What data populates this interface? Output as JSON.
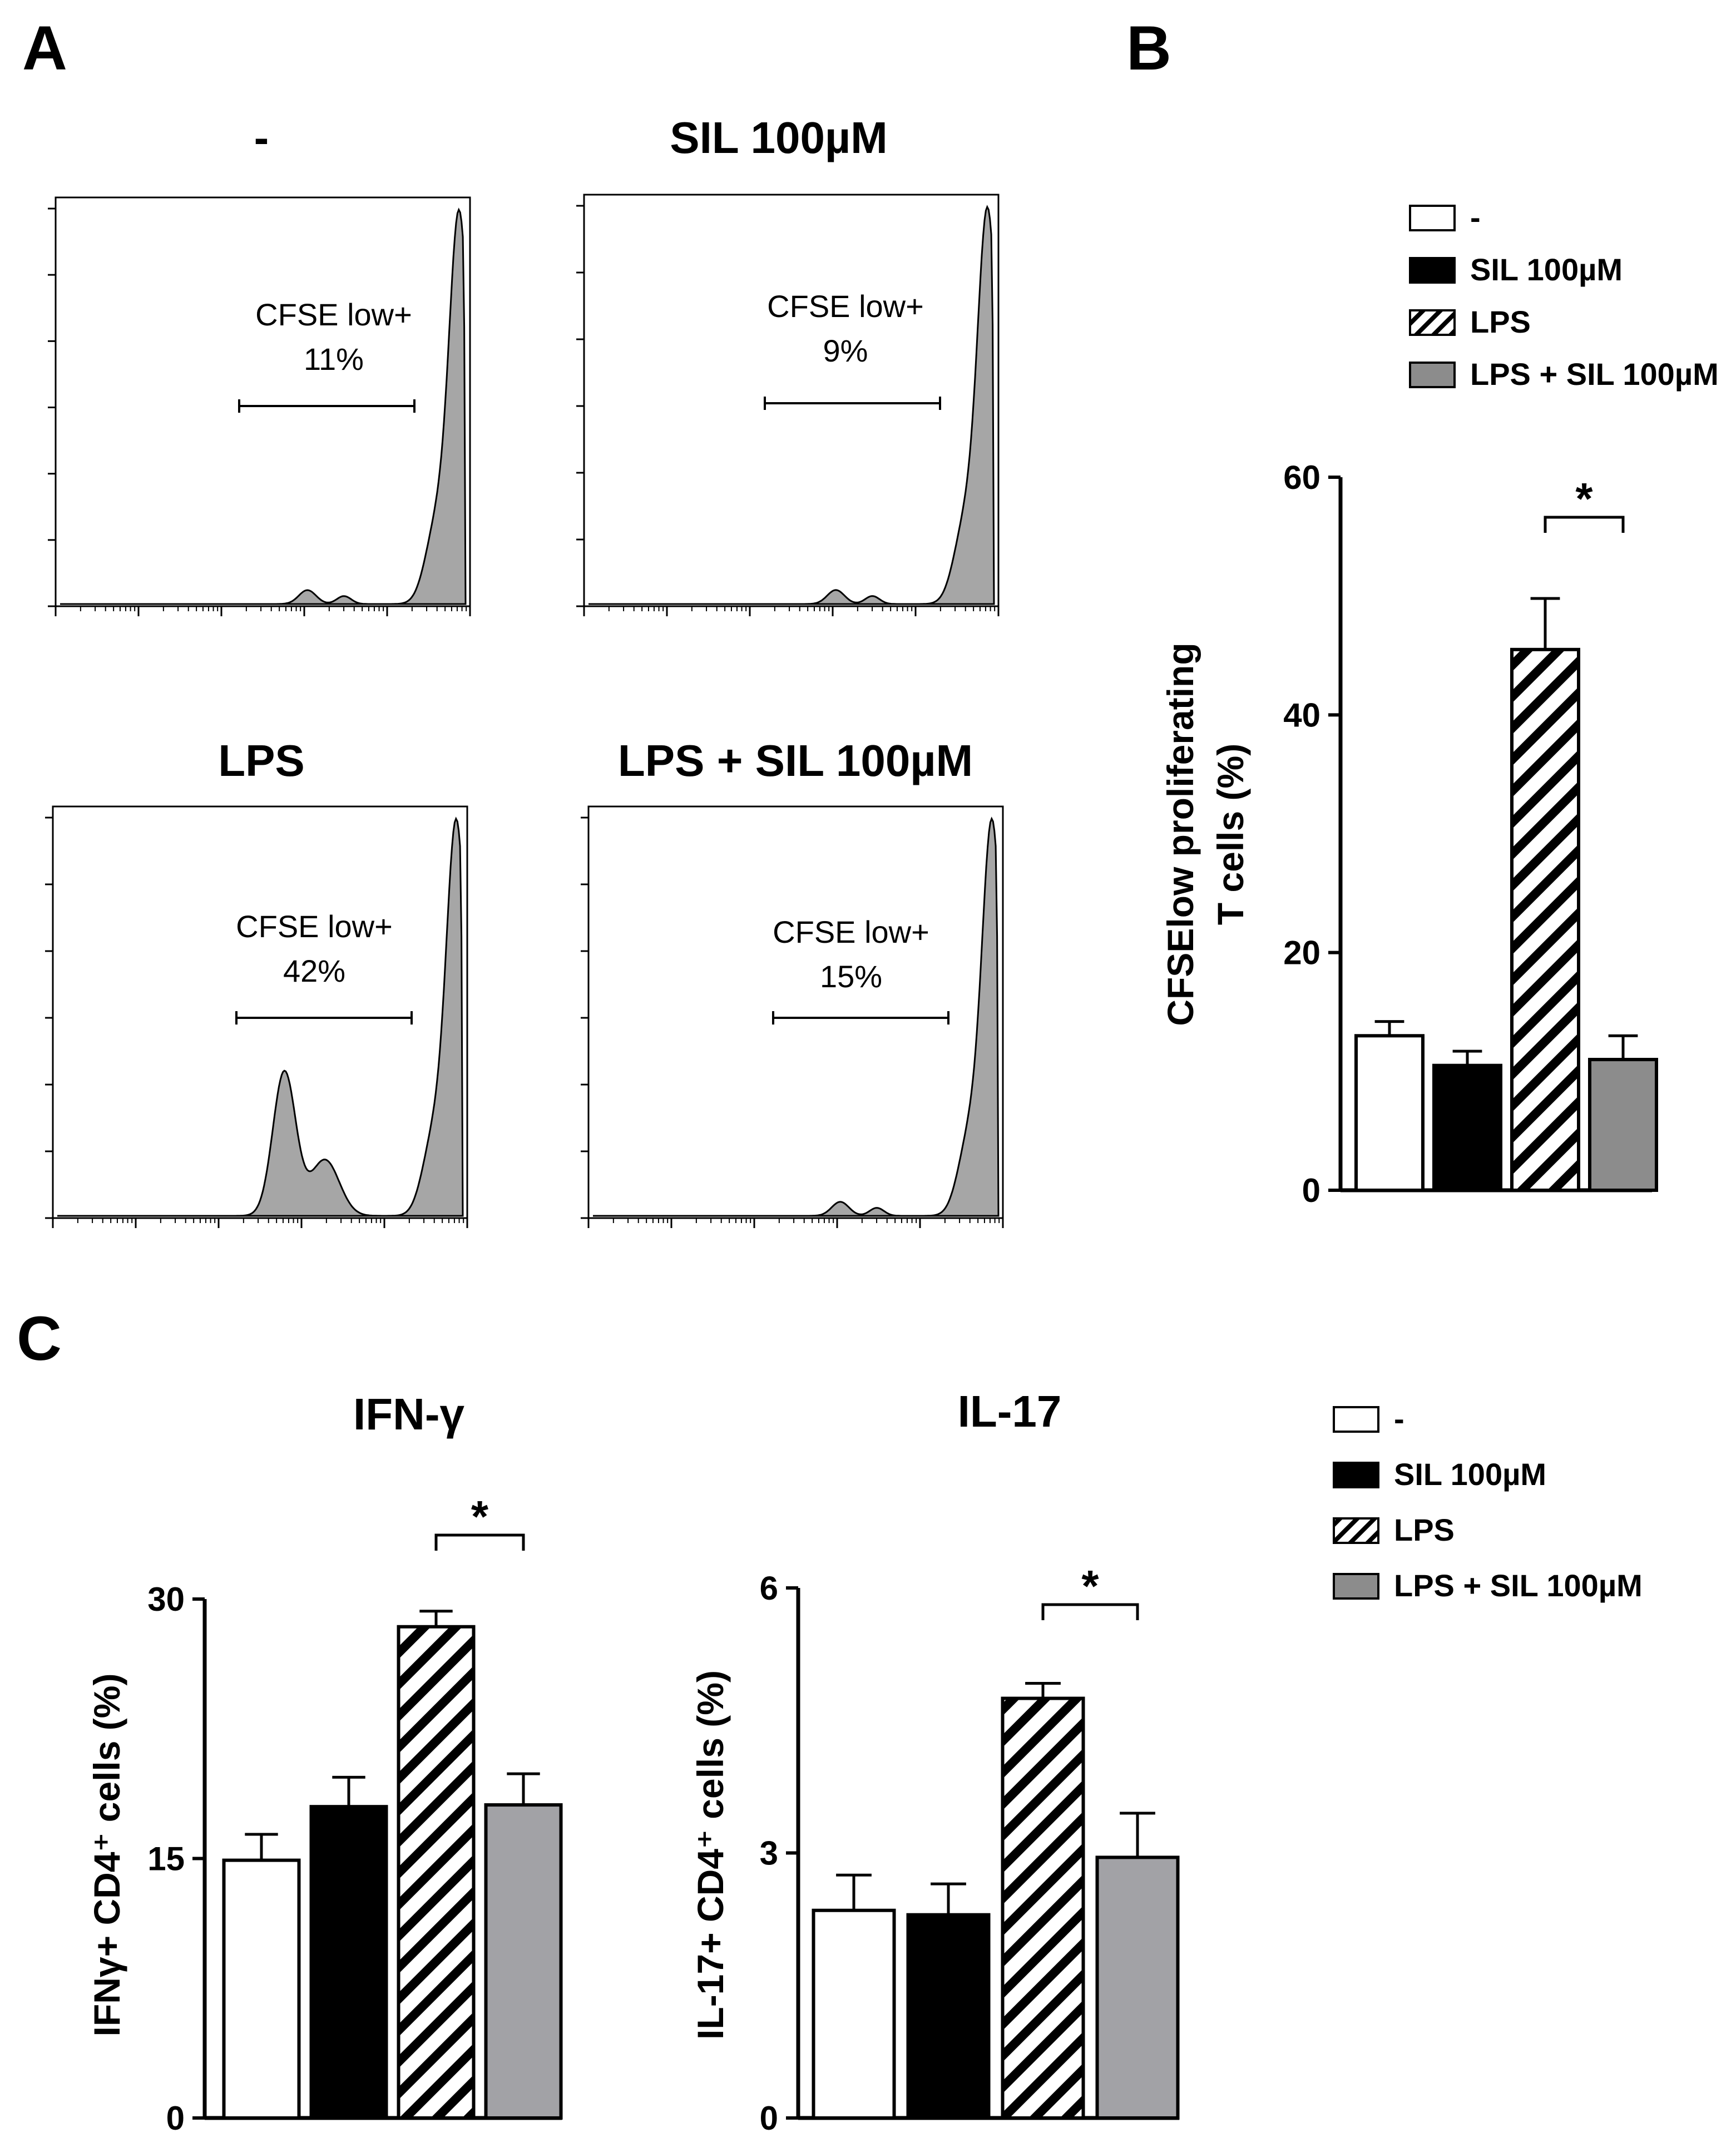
{
  "panel_letters": {
    "a": "A",
    "b": "B",
    "c": "C"
  },
  "legend": {
    "entries": [
      {
        "label": "-",
        "fill": "white"
      },
      {
        "label": "SIL 100µM",
        "fill": "black"
      },
      {
        "label": "LPS",
        "fill": "hatch"
      },
      {
        "label": "LPS + SIL 100µM",
        "fill": "gray"
      }
    ]
  },
  "colors": {
    "black": "#000000",
    "white": "#ffffff",
    "gray_bar": "#8c8c8c",
    "gray_bar_c": "#a2a2a6",
    "hist_fill": "#a6a6a6"
  },
  "chart_data": [
    {
      "id": "A",
      "type": "histogram",
      "gate_label": "CFSE low+",
      "panels": [
        {
          "title": "-",
          "percent_text": "11%",
          "percent": 11
        },
        {
          "title": "SIL 100µM",
          "percent_text": "9%",
          "percent": 9
        },
        {
          "title": "LPS",
          "percent_text": "42%",
          "percent": 42
        },
        {
          "title": "LPS + SIL 100µM",
          "percent_text": "15%",
          "percent": 15
        }
      ]
    },
    {
      "id": "B",
      "type": "bar",
      "title": "",
      "ylabel_lines": [
        "CFSElow proliferating",
        "T cells (%)"
      ],
      "ylim": [
        0,
        60
      ],
      "yticks": [
        0,
        20,
        40,
        60
      ],
      "categories": [
        "-",
        "SIL 100µM",
        "LPS",
        "LPS + SIL 100µM"
      ],
      "fills": [
        "white",
        "black",
        "hatch",
        "gray"
      ],
      "values": [
        13,
        10.5,
        45.5,
        11
      ],
      "errors": [
        1.2,
        1.2,
        4.3,
        2
      ],
      "significance": {
        "from": 2,
        "to": 3,
        "label": "*"
      }
    },
    {
      "id": "C1",
      "type": "bar",
      "title": "IFN-γ",
      "ylabel": "IFNγ+ CD4⁺ cells (%)",
      "ylim": [
        0,
        30
      ],
      "yticks": [
        0,
        15,
        30
      ],
      "categories": [
        "-",
        "SIL 100µM",
        "LPS",
        "LPS + SIL 100µM"
      ],
      "fills": [
        "white",
        "black",
        "hatch",
        "gray"
      ],
      "values": [
        14.9,
        18,
        28.4,
        18.1
      ],
      "errors": [
        1.5,
        1.7,
        0.9,
        1.8
      ],
      "significance": {
        "from": 2,
        "to": 3,
        "label": "*"
      }
    },
    {
      "id": "C2",
      "type": "bar",
      "title": "IL-17",
      "ylabel": "IL-17+ CD4⁺ cells (%)",
      "ylim": [
        0,
        6
      ],
      "yticks": [
        0,
        3,
        6
      ],
      "categories": [
        "-",
        "SIL 100µM",
        "LPS",
        "LPS + SIL 100µM"
      ],
      "fills": [
        "white",
        "black",
        "hatch",
        "gray"
      ],
      "values": [
        2.35,
        2.3,
        4.75,
        2.95
      ],
      "errors": [
        0.4,
        0.35,
        0.17,
        0.5
      ],
      "significance": {
        "from": 2,
        "to": 3,
        "label": "*"
      }
    }
  ]
}
